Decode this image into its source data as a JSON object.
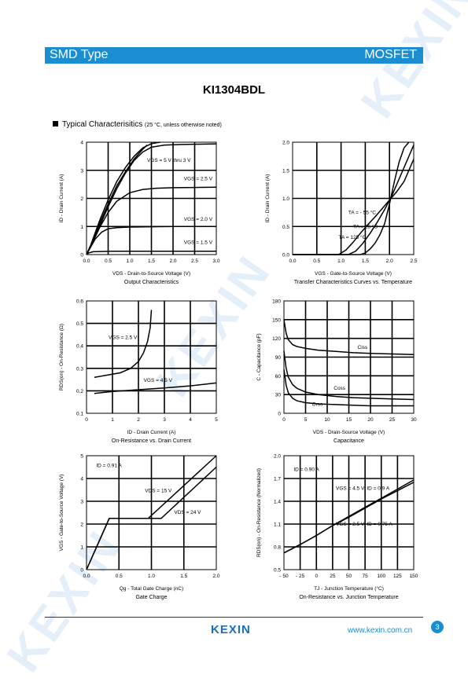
{
  "header": {
    "left": "SMD Type",
    "right": "MOSFET"
  },
  "part_number": "KI1304BDL",
  "section": {
    "title": "Typical  Characterisitics",
    "note": "(25 °C, unless otherwise noted)"
  },
  "footer": {
    "logo": "KEXIN",
    "website": "www.kexin.com.cn",
    "page": "3"
  },
  "watermark": "KEXIN",
  "colors": {
    "brand_blue": "#1b8ed1",
    "watermark": "#cfe3f5"
  },
  "chart_data": [
    {
      "id": "output",
      "type": "line",
      "title": "Output Characteristics",
      "xlabel": "VDS - Drain-to-Source Voltage (V)",
      "ylabel": "ID - Drain Current (A)",
      "xlim": [
        0,
        3
      ],
      "ylim": [
        0,
        4
      ],
      "xticks": [
        "0.0",
        "0.5",
        "1.0",
        "1.5",
        "2.0",
        "2.5",
        "3.0"
      ],
      "yticks": [
        "0",
        "1",
        "2",
        "3",
        "4"
      ],
      "series": [
        {
          "name": "VGS = 5 V thru 3 V",
          "x": [
            0,
            0.1,
            0.3,
            0.5,
            0.7,
            0.9,
            1.1,
            1.3,
            1.5,
            1.7
          ],
          "y": [
            0,
            0.35,
            1.2,
            1.95,
            2.6,
            3.1,
            3.5,
            3.8,
            3.95,
            4.0
          ]
        },
        {
          "name": "",
          "x": [
            0,
            0.1,
            0.3,
            0.5,
            0.7,
            0.9,
            1.1,
            1.3,
            1.4
          ],
          "y": [
            0,
            0.33,
            1.1,
            1.8,
            2.45,
            2.95,
            3.4,
            3.75,
            3.9
          ]
        },
        {
          "name": "",
          "x": [
            0,
            0.1,
            0.3,
            0.5,
            0.7,
            0.9,
            1.1,
            1.3,
            1.5,
            1.8,
            2.2,
            2.6,
            3.0
          ],
          "y": [
            0,
            0.31,
            1.0,
            1.7,
            2.35,
            2.9,
            3.35,
            3.65,
            3.82,
            3.9,
            3.92,
            3.93,
            3.94
          ]
        },
        {
          "name": "VGS = 2.5 V",
          "x": [
            0,
            0.1,
            0.3,
            0.5,
            0.7,
            1.0,
            1.3,
            1.6,
            2.0,
            2.5,
            3.0
          ],
          "y": [
            0,
            0.3,
            0.95,
            1.5,
            1.9,
            2.2,
            2.32,
            2.36,
            2.38,
            2.39,
            2.4
          ]
        },
        {
          "name": "VGS = 2.0 V",
          "x": [
            0,
            0.1,
            0.2,
            0.35,
            0.5,
            0.7,
            1.0,
            1.5,
            2.0,
            3.0
          ],
          "y": [
            0,
            0.28,
            0.55,
            0.8,
            0.92,
            0.96,
            0.98,
            0.99,
            1.0,
            1.0
          ]
        },
        {
          "name": "VGS = 1.5 V",
          "x": [
            0,
            0.05,
            0.15,
            0.3,
            0.6,
            1.0,
            2.0,
            3.0
          ],
          "y": [
            0,
            0.06,
            0.1,
            0.11,
            0.12,
            0.12,
            0.12,
            0.12
          ]
        }
      ],
      "labels": [
        {
          "text": "VGS = 5 V thru 3 V",
          "x": 1.4,
          "y": 3.3
        },
        {
          "text": "VGS = 2.5 V",
          "x": 2.25,
          "y": 2.65
        },
        {
          "text": "VGS = 2.0 V",
          "x": 2.25,
          "y": 1.2
        },
        {
          "text": "VGS = 1.5 V",
          "x": 2.25,
          "y": 0.38
        }
      ]
    },
    {
      "id": "transfer",
      "type": "line",
      "title": "Transfer Characteristics Curves vs. Temperature",
      "xlabel": "VGS - Gate-to-Source Voltage (V)",
      "ylabel": "ID - Drain Current (A)",
      "xlim": [
        0,
        2.5
      ],
      "ylim": [
        0,
        2.0
      ],
      "xticks": [
        "0.0",
        "0.5",
        "1.0",
        "1.5",
        "2.0",
        "2.5"
      ],
      "yticks": [
        "0.0",
        "0.5",
        "1.0",
        "1.5",
        "2.0"
      ],
      "series": [
        {
          "name": "TA = - 55 °C",
          "x": [
            0,
            1.4,
            1.5,
            1.6,
            1.7,
            1.8,
            1.9,
            2.0,
            2.1,
            2.2,
            2.3,
            2.4
          ],
          "y": [
            0,
            0,
            0.03,
            0.1,
            0.2,
            0.35,
            0.55,
            0.9,
            1.3,
            1.65,
            1.9,
            2.0
          ]
        },
        {
          "name": "TA = 25 °C",
          "x": [
            0,
            1.15,
            1.3,
            1.45,
            1.6,
            1.75,
            1.9,
            2.05,
            2.2,
            2.35,
            2.5
          ],
          "y": [
            0,
            0,
            0.06,
            0.2,
            0.38,
            0.58,
            0.8,
            1.05,
            1.35,
            1.65,
            1.95
          ]
        },
        {
          "name": "TA = 125 °C",
          "x": [
            0,
            0.95,
            1.1,
            1.25,
            1.4,
            1.55,
            1.7,
            1.85,
            2.0,
            2.15,
            2.3,
            2.5
          ],
          "y": [
            0,
            0,
            0.08,
            0.22,
            0.38,
            0.53,
            0.67,
            0.82,
            0.97,
            1.12,
            1.3,
            1.7
          ]
        }
      ],
      "labels": [
        {
          "text": "TA = - 55 °C",
          "x": 1.15,
          "y": 0.72
        },
        {
          "text": "TA = 25 °C",
          "x": 1.25,
          "y": 0.47
        },
        {
          "text": "TA = 125 °C",
          "x": 0.95,
          "y": 0.28
        }
      ]
    },
    {
      "id": "onres",
      "type": "line",
      "title": "On-Resistance vs. Drain Current",
      "xlabel": "ID - Drain Current (A)",
      "ylabel": "RDS(on) - On-Resistance (Ω)",
      "xlim": [
        0,
        5
      ],
      "ylim": [
        0.1,
        0.6
      ],
      "xticks": [
        "0",
        "1",
        "2",
        "3",
        "4",
        "5"
      ],
      "yticks": [
        "0.1",
        "0.2",
        "0.3",
        "0.4",
        "0.5",
        "0.6"
      ],
      "series": [
        {
          "name": "VGS = 2.5 V",
          "x": [
            0.3,
            0.8,
            1.3,
            1.7,
            2.0,
            2.2,
            2.35,
            2.45,
            2.5
          ],
          "y": [
            0.26,
            0.27,
            0.28,
            0.3,
            0.33,
            0.37,
            0.42,
            0.48,
            0.56
          ]
        },
        {
          "name": "VGS = 4.5 V",
          "x": [
            0.3,
            1,
            2,
            3,
            4,
            5
          ],
          "y": [
            0.188,
            0.197,
            0.205,
            0.213,
            0.222,
            0.235
          ]
        }
      ],
      "labels": [
        {
          "text": "VGS = 2.5 V",
          "x": 0.85,
          "y": 0.43
        },
        {
          "text": "VGS = 4.5 V",
          "x": 2.2,
          "y": 0.24
        }
      ]
    },
    {
      "id": "cap",
      "type": "line",
      "title": "Capacitance",
      "xlabel": "VDS - Drain-Source Voltage (V)",
      "ylabel": "C - Capacitance (pF)",
      "xlim": [
        0,
        30
      ],
      "ylim": [
        0,
        180
      ],
      "xticks": [
        "0",
        "5",
        "10",
        "15",
        "20",
        "25",
        "30"
      ],
      "yticks": [
        "0",
        "30",
        "60",
        "90",
        "120",
        "150",
        "180"
      ],
      "series": [
        {
          "name": "Ciss",
          "x": [
            0,
            0.5,
            1,
            2,
            3,
            5,
            8,
            12,
            16,
            20,
            25,
            30
          ],
          "y": [
            150,
            128,
            118,
            110,
            107,
            104,
            101,
            99,
            97,
            96,
            95,
            94
          ]
        },
        {
          "name": "Coss",
          "x": [
            0,
            0.5,
            1,
            2,
            3,
            5,
            8,
            12,
            16,
            20,
            25,
            30
          ],
          "y": [
            100,
            72,
            58,
            46,
            40,
            34,
            30,
            27,
            25,
            24,
            23,
            22
          ]
        },
        {
          "name": "Crss",
          "x": [
            0,
            0.5,
            1,
            2,
            3,
            5,
            8,
            12,
            16,
            20,
            25,
            30
          ],
          "y": [
            70,
            45,
            33,
            24,
            20,
            17,
            15,
            14,
            13,
            12,
            12,
            12
          ]
        }
      ],
      "labels": [
        {
          "text": "Ciss",
          "x": 17,
          "y": 103
        },
        {
          "text": "Coss",
          "x": 11.5,
          "y": 38
        },
        {
          "text": "Crss",
          "x": 6.5,
          "y": 12
        }
      ]
    },
    {
      "id": "gate",
      "type": "line",
      "title": "Gate Charge",
      "xlabel": "Qg - Total Gate Charge (nC)",
      "ylabel": "VGS - Gate-to-Source Voltage (V)",
      "xlim": [
        0,
        2.0
      ],
      "ylim": [
        0,
        5
      ],
      "xticks": [
        "0.0",
        "0.5",
        "1.0",
        "1.5",
        "2.0"
      ],
      "yticks": [
        "0",
        "1",
        "2",
        "3",
        "4",
        "5"
      ],
      "series": [
        {
          "name": "VDS = 15 V",
          "x": [
            0,
            0.35,
            0.95,
            2.0
          ],
          "y": [
            0,
            2.25,
            2.25,
            5.0
          ]
        },
        {
          "name": "VDS = 24 V",
          "x": [
            0,
            0.35,
            1.15,
            2.0
          ],
          "y": [
            0,
            2.25,
            2.25,
            4.5
          ]
        }
      ],
      "labels": [
        {
          "text": "ID = 0.91 A",
          "x": 0.15,
          "y": 4.5
        },
        {
          "text": "VDS = 15 V",
          "x": 0.9,
          "y": 3.4
        },
        {
          "text": "VDS = 24 V",
          "x": 1.35,
          "y": 2.45
        }
      ]
    },
    {
      "id": "rtemp",
      "type": "line",
      "title": "On-Resistance vs. Junction Temperature",
      "xlabel": "TJ - Junction Temperature (°C)",
      "ylabel": "RDS(on) - On-Resistance (Normalized)",
      "xlim": [
        -50,
        150
      ],
      "ylim": [
        0.5,
        2.0
      ],
      "xticks": [
        "- 50",
        "- 25",
        "0",
        "25",
        "50",
        "75",
        "100",
        "125",
        "150"
      ],
      "yticks": [
        "0.5",
        "0.8",
        "1.1",
        "1.4",
        "1.7",
        "2.0"
      ],
      "series": [
        {
          "name": "VGS = 4.5 V, ID = 0.9 A",
          "x": [
            -50,
            -25,
            0,
            25,
            50,
            75,
            100,
            125,
            150
          ],
          "y": [
            0.72,
            0.83,
            0.95,
            1.08,
            1.19,
            1.31,
            1.43,
            1.54,
            1.65
          ]
        },
        {
          "name": "VGS = 2.5 V, ID = 0.75 A",
          "x": [
            -50,
            -25,
            0,
            25,
            50,
            75,
            100,
            125,
            150
          ],
          "y": [
            0.72,
            0.83,
            0.95,
            1.08,
            1.2,
            1.32,
            1.44,
            1.56,
            1.68
          ]
        }
      ],
      "labels": [
        {
          "text": "ID = 0.90 A",
          "x": -35,
          "y": 1.8
        },
        {
          "text": "VGS = 4.5 V, ID = 0.9 A",
          "x": 30,
          "y": 1.55
        },
        {
          "text": "VGS = 2.5 V, ID = 0.75 A",
          "x": 30,
          "y": 1.08
        }
      ]
    }
  ]
}
